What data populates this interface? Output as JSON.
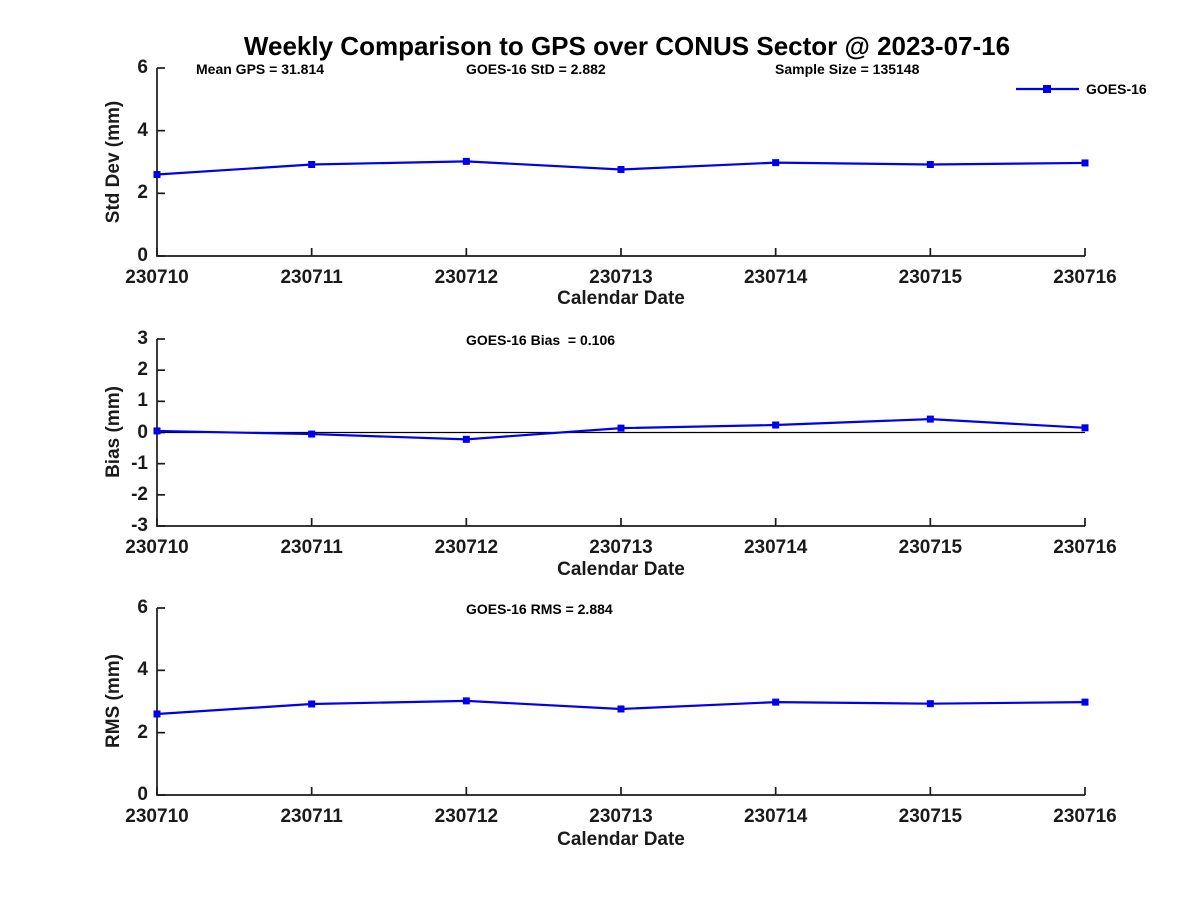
{
  "title": "Weekly Comparison to GPS over CONUS Sector @ 2023-07-16",
  "chart_data": [
    {
      "type": "line",
      "title": "Weekly Comparison to GPS over CONUS Sector @ 2023-07-16",
      "annotations": [
        "Mean GPS = 31.814",
        "GOES-16 StD = 2.882",
        "Sample Size = 135148"
      ],
      "categories": [
        "230710",
        "230711",
        "230712",
        "230713",
        "230714",
        "230715",
        "230716"
      ],
      "series": [
        {
          "name": "GOES-16",
          "color": "#0000EE",
          "values": [
            2.6,
            2.92,
            3.02,
            2.76,
            2.98,
            2.92,
            2.97
          ]
        }
      ],
      "xlabel": "Calendar Date",
      "ylabel": "Std Dev (mm)",
      "ylim": [
        0,
        6
      ],
      "yticks": [
        0,
        2,
        4,
        6
      ],
      "grid": false,
      "legend": {
        "label": "GOES-16",
        "position": "top-right"
      }
    },
    {
      "type": "line",
      "annotations": [
        "GOES-16 Bias  = 0.106"
      ],
      "categories": [
        "230710",
        "230711",
        "230712",
        "230713",
        "230714",
        "230715",
        "230716"
      ],
      "series": [
        {
          "name": "GOES-16",
          "color": "#0000EE",
          "values": [
            0.05,
            -0.05,
            -0.22,
            0.14,
            0.24,
            0.43,
            0.15
          ]
        }
      ],
      "xlabel": "Calendar Date",
      "ylabel": "Bias (mm)",
      "ylim": [
        -3,
        3
      ],
      "yticks": [
        -3,
        -2,
        -1,
        0,
        1,
        2,
        3
      ],
      "zero_line": true,
      "grid": false
    },
    {
      "type": "line",
      "annotations": [
        "GOES-16 RMS = 2.884"
      ],
      "categories": [
        "230710",
        "230711",
        "230712",
        "230713",
        "230714",
        "230715",
        "230716"
      ],
      "series": [
        {
          "name": "GOES-16",
          "color": "#0000EE",
          "values": [
            2.6,
            2.92,
            3.02,
            2.76,
            2.98,
            2.93,
            2.98
          ]
        }
      ],
      "xlabel": "Calendar Date",
      "ylabel": "RMS (mm)",
      "ylim": [
        0,
        6
      ],
      "yticks": [
        0,
        2,
        4,
        6
      ],
      "grid": false
    }
  ]
}
